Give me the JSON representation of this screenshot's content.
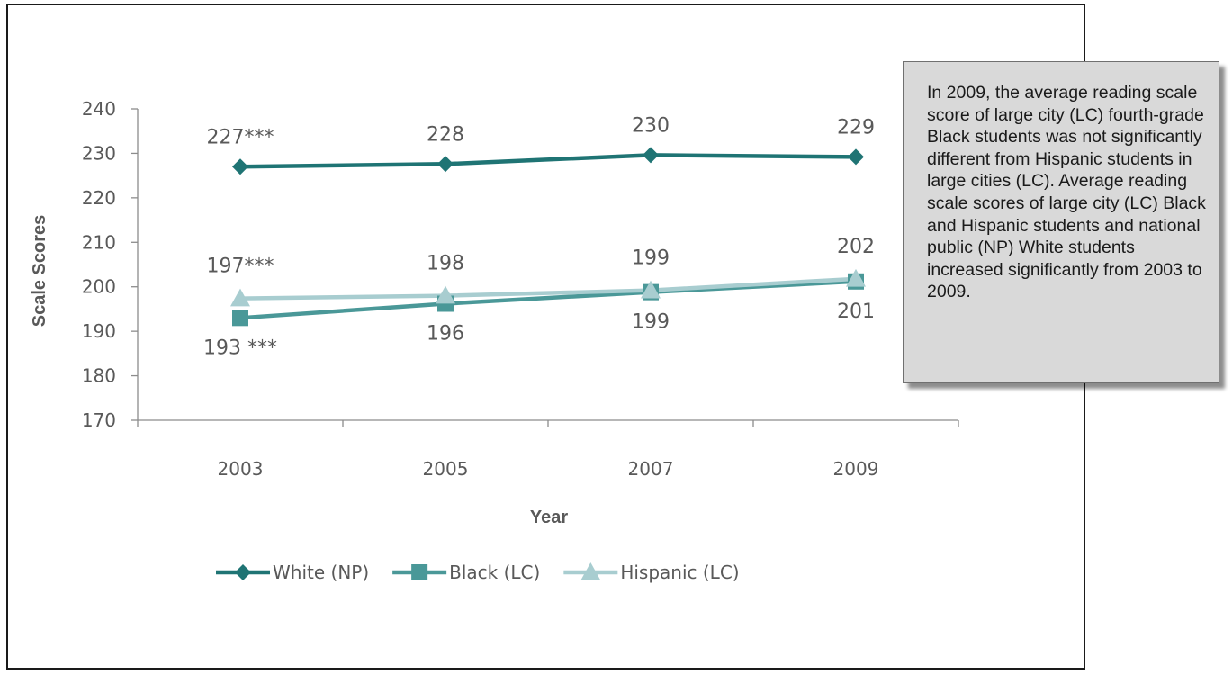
{
  "chart_data": {
    "type": "line",
    "x": [
      "2003",
      "2005",
      "2007",
      "2009"
    ],
    "xlabel": "Year",
    "ylabel": "Scale Scores",
    "ylim": [
      170,
      240
    ],
    "yticks": [
      "170",
      "180",
      "190",
      "200",
      "210",
      "220",
      "230",
      "240"
    ],
    "grid": false,
    "legend_position": "bottom",
    "series": [
      {
        "name": "White (NP)",
        "values": [
          227,
          227.6,
          229.6,
          229.2
        ],
        "labels": [
          "227***",
          "228",
          "230",
          "229"
        ],
        "label_position": "above",
        "marker": "diamond",
        "color": "#1f7474"
      },
      {
        "name": "Black (LC)",
        "values": [
          193,
          196.2,
          198.8,
          201.2
        ],
        "labels": [
          "193 ***",
          "196",
          "199",
          "201"
        ],
        "label_position": "below",
        "marker": "square",
        "color": "#4a9898"
      },
      {
        "name": "Hispanic (LC)",
        "values": [
          197.4,
          198,
          199.2,
          201.8
        ],
        "labels": [
          "197***",
          "198",
          "199",
          "202"
        ],
        "label_position": "above",
        "marker": "triangle",
        "color": "#a8cdd0"
      }
    ]
  },
  "callout": {
    "text": "In 2009, the average reading scale score of large city (LC) fourth-grade Black students was not significantly different from Hispanic students in large cities (LC). Average reading scale scores of large city (LC) Black and Hispanic students and national public (NP) White students increased significantly from 2003 to 2009."
  }
}
